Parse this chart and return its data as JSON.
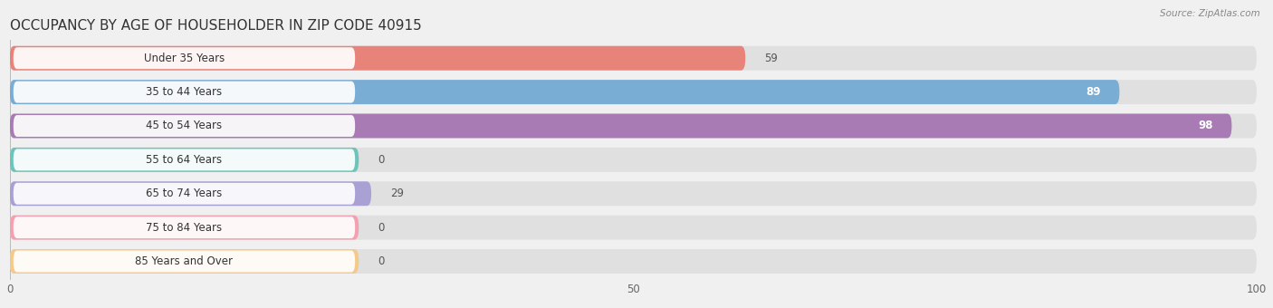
{
  "title": "OCCUPANCY BY AGE OF HOUSEHOLDER IN ZIP CODE 40915",
  "source": "Source: ZipAtlas.com",
  "categories": [
    "Under 35 Years",
    "35 to 44 Years",
    "45 to 54 Years",
    "55 to 64 Years",
    "65 to 74 Years",
    "75 to 84 Years",
    "85 Years and Over"
  ],
  "values": [
    59,
    89,
    98,
    0,
    29,
    0,
    0
  ],
  "bar_colors": [
    "#E8837A",
    "#7AADD4",
    "#A87BB5",
    "#6DC4BB",
    "#A9A0D4",
    "#F4A0B0",
    "#F5C98A"
  ],
  "background_color": "#f0f0f0",
  "row_bg_color": "#e8e8e8",
  "xlim": [
    0,
    100
  ],
  "xticks": [
    0,
    50,
    100
  ],
  "title_fontsize": 11,
  "label_fontsize": 8.5,
  "value_fontsize": 8.5
}
